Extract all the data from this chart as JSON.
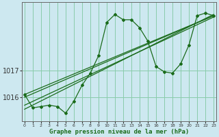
{
  "xlabel": "Graphe pression niveau de la mer (hPa)",
  "bg_color": "#cde8f0",
  "grid_color": "#88ccaa",
  "line_color": "#1a6b1a",
  "marker_color": "#1a6b1a",
  "ylim_min": 1015.1,
  "ylim_max": 1019.55,
  "yticks": [
    1016,
    1017
  ],
  "ytick_labels": [
    "1016",
    "1017"
  ],
  "xticks": [
    0,
    1,
    2,
    3,
    4,
    5,
    6,
    7,
    8,
    9,
    10,
    11,
    12,
    13,
    14,
    15,
    16,
    17,
    18,
    19,
    20,
    21,
    22,
    23
  ],
  "series1_x": [
    0,
    1,
    2,
    3,
    4,
    5,
    6,
    7,
    8,
    9,
    10,
    11,
    12,
    13,
    14,
    15,
    16,
    17,
    18,
    19,
    20,
    21,
    22,
    23
  ],
  "series1_y": [
    1016.1,
    1015.6,
    1015.65,
    1015.7,
    1015.65,
    1015.4,
    1015.85,
    1016.45,
    1016.9,
    1017.55,
    1018.8,
    1019.1,
    1018.9,
    1018.9,
    1018.6,
    1018.1,
    1017.15,
    1016.95,
    1016.9,
    1017.25,
    1017.95,
    1019.05,
    1019.15,
    1019.05
  ],
  "line2_x": [
    0,
    23
  ],
  "line2_y": [
    1015.55,
    1019.1
  ],
  "line3_x": [
    0,
    23
  ],
  "line3_y": [
    1015.7,
    1019.0
  ],
  "line4_x": [
    0,
    23
  ],
  "line4_y": [
    1016.0,
    1019.05
  ],
  "line5_x": [
    0,
    23
  ],
  "line5_y": [
    1016.1,
    1019.05
  ]
}
